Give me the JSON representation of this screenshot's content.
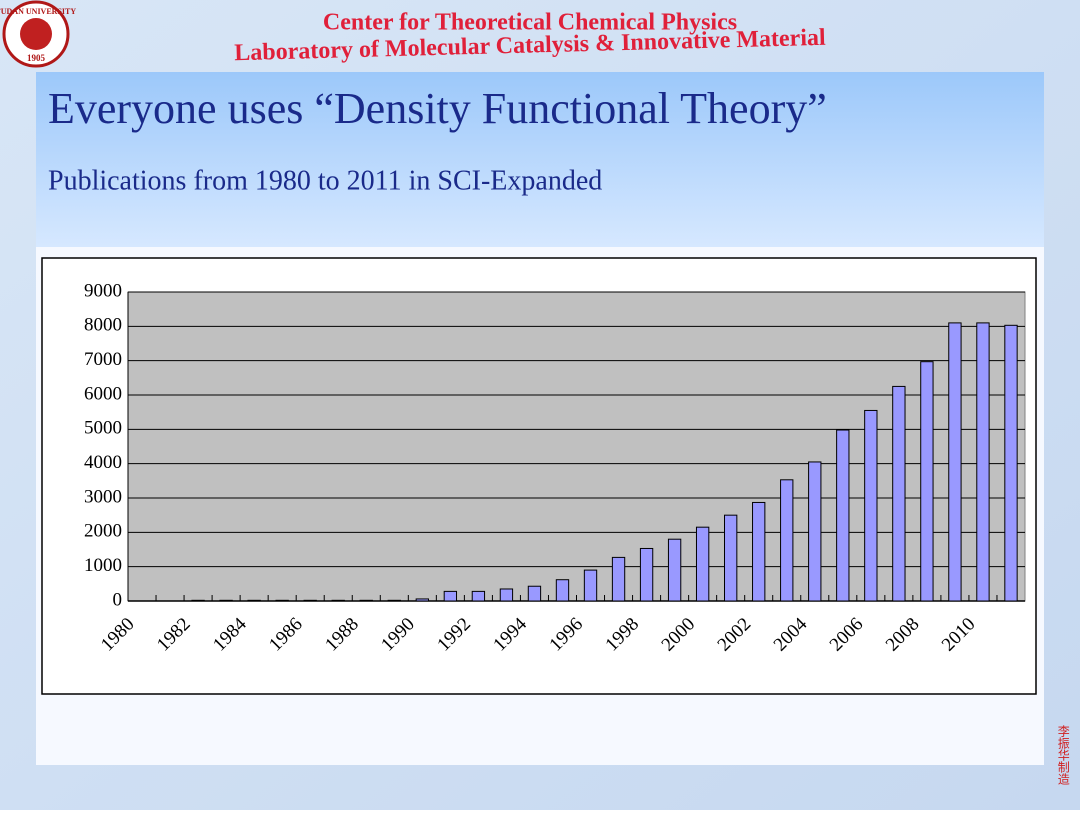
{
  "header": {
    "line1": "Center for Theoretical Chemical Physics",
    "line2": "Laboratory of Molecular Catalysis & Innovative Material",
    "logo_text": "FUDAN UNIVERSITY",
    "logo_year": "1905"
  },
  "slide": {
    "title": "Everyone uses “Density Functional Theory”",
    "subtitle": "Publications from 1980 to 2011 in SCI-Expanded",
    "signature": "李振华制造"
  },
  "chart_data": {
    "type": "bar",
    "categories": [
      "1980",
      null,
      "1982",
      null,
      "1984",
      null,
      "1986",
      null,
      "1988",
      null,
      "1990",
      null,
      "1992",
      null,
      "1994",
      null,
      "1996",
      null,
      "1998",
      null,
      "2000",
      null,
      "2002",
      null,
      "2004",
      null,
      "2006",
      null,
      "2008",
      null,
      "2010",
      null
    ],
    "values": [
      0,
      0,
      20,
      20,
      20,
      20,
      20,
      20,
      20,
      20,
      60,
      280,
      280,
      350,
      430,
      620,
      900,
      1270,
      1530,
      1800,
      2150,
      2500,
      2870,
      3530,
      4050,
      4980,
      5550,
      6250,
      6970,
      8100,
      8100,
      8030
    ],
    "color": "#9999ff",
    "ylim": [
      0,
      9000
    ],
    "yticks": [
      0,
      1000,
      2000,
      3000,
      4000,
      5000,
      6000,
      7000,
      8000,
      9000
    ],
    "grid": true
  }
}
